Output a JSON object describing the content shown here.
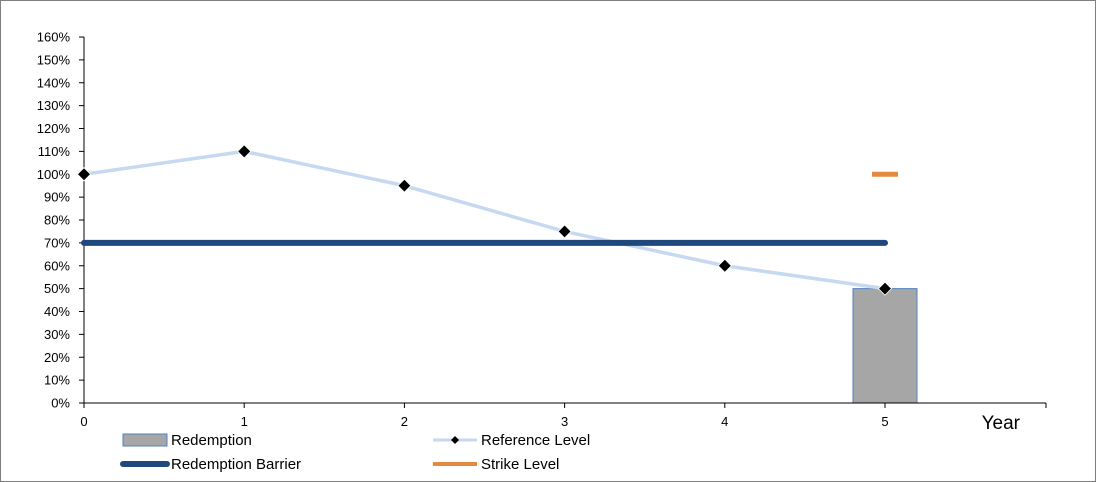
{
  "chart_data": {
    "type": "bar",
    "x": [
      0,
      1,
      2,
      3,
      4,
      5
    ],
    "xlabel": "Year",
    "ylabel": "",
    "ylim": [
      0,
      160
    ],
    "y_tick_step": 10,
    "y_tick_format": "percent",
    "grid": false,
    "legend_position": "bottom",
    "series": [
      {
        "name": "Redemption",
        "type": "bar",
        "points": [
          {
            "x": 5,
            "y": 50
          }
        ],
        "color": "#A6A6A6",
        "edge_color": "#4F81BD"
      },
      {
        "name": "Reference Level",
        "type": "line",
        "points": [
          {
            "x": 0,
            "y": 100
          },
          {
            "x": 1,
            "y": 110
          },
          {
            "x": 2,
            "y": 95
          },
          {
            "x": 3,
            "y": 75
          },
          {
            "x": 4,
            "y": 60
          },
          {
            "x": 5,
            "y": 50
          }
        ],
        "color": "#C6D9F1",
        "marker_color": "#000000",
        "marker": "diamond"
      },
      {
        "name": "Redemption Barrier",
        "type": "line",
        "points": [
          {
            "x": 0,
            "y": 70
          },
          {
            "x": 5,
            "y": 70
          }
        ],
        "color": "#1F497D"
      },
      {
        "name": "Strike Level",
        "type": "marker",
        "points": [
          {
            "x": 5,
            "y": 100
          }
        ],
        "color": "#E38A40"
      }
    ]
  }
}
